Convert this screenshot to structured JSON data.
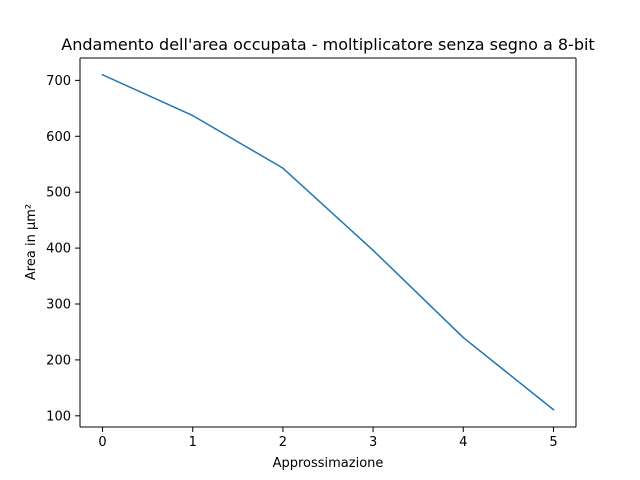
{
  "chart_data": {
    "type": "line",
    "title": "Andamento dell'area occupata - moltiplicatore senza segno a 8-bit",
    "xlabel": "Approssimazione",
    "ylabel": "Area in µm²",
    "x": [
      0,
      1,
      2,
      3,
      4,
      5
    ],
    "series": [
      {
        "values": [
          710,
          637,
          543,
          396,
          240,
          111
        ],
        "color": "#1f77b4"
      }
    ],
    "xlim": [
      -0.25,
      5.25
    ],
    "ylim": [
      80,
      740
    ],
    "xticks": [
      0,
      1,
      2,
      3,
      4,
      5
    ],
    "yticks": [
      100,
      200,
      300,
      400,
      500,
      600,
      700
    ],
    "grid": false,
    "legend": "none"
  }
}
